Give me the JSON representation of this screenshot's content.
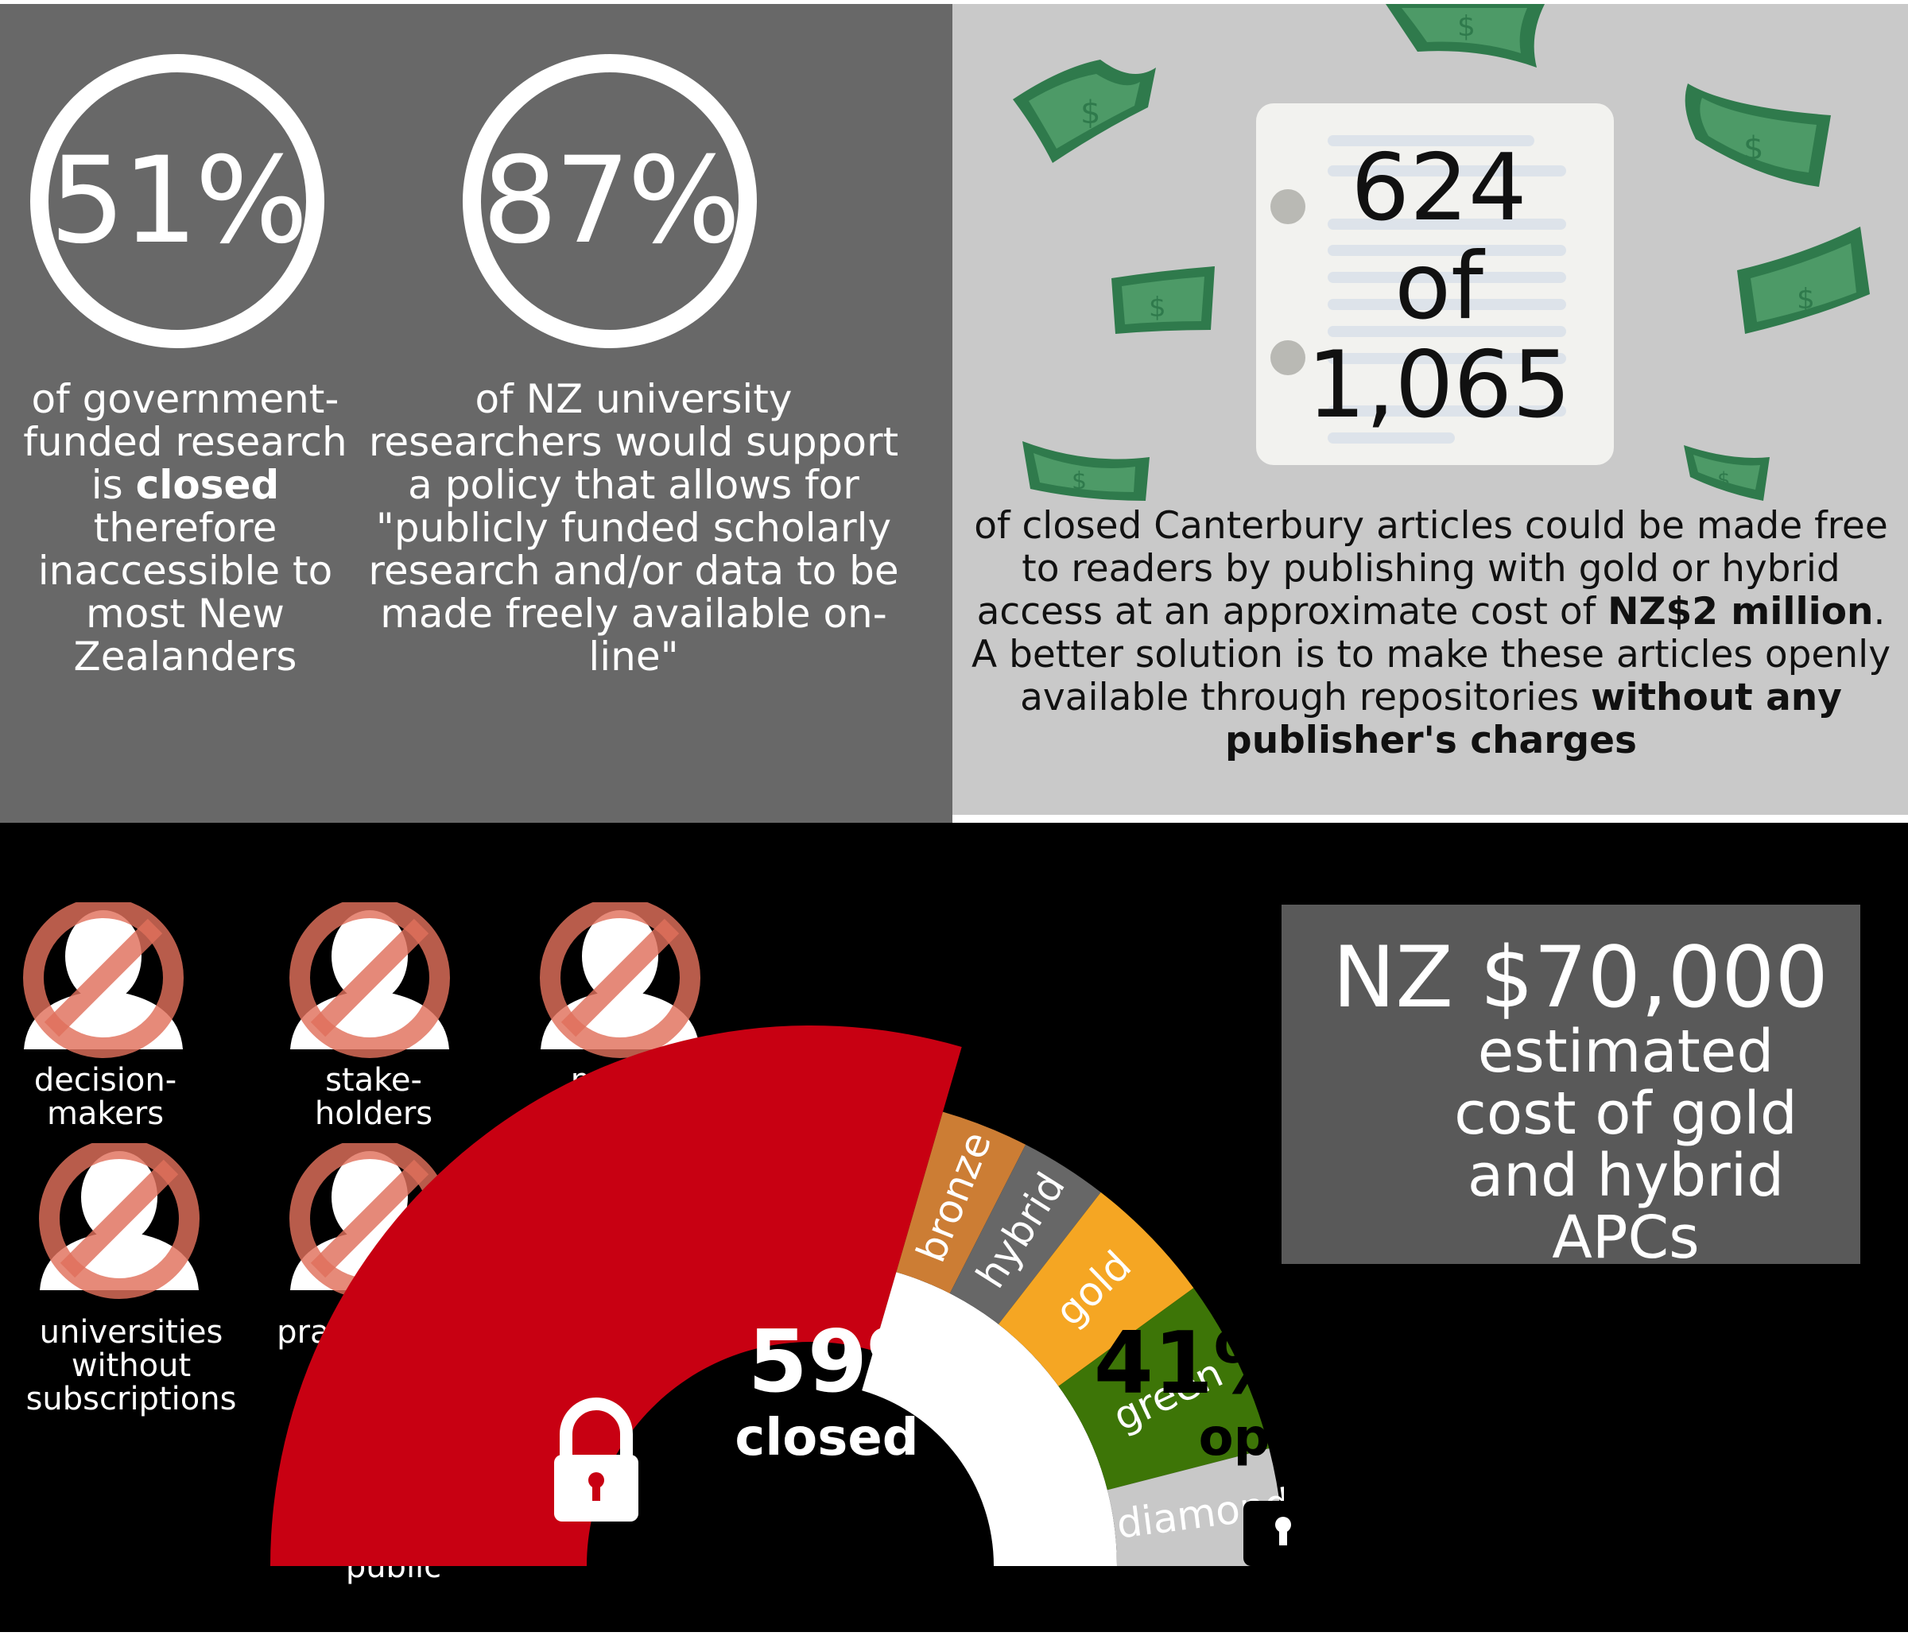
{
  "stat_left": {
    "value": "51%",
    "desc_before": "of government-funded research is ",
    "desc_bold": "closed",
    "desc_after": " therefore inaccessible to most New Zealanders"
  },
  "stat_middle": {
    "value": "87%",
    "desc": "of NZ university researchers would support a policy that allows for \"publicly funded scholarly research and/or data to be made freely available on-line\""
  },
  "canterbury": {
    "count_line1": "624",
    "count_line2": "of",
    "count_line3": "1,065",
    "text_1": "of closed Canterbury articles could be made free to readers by publishing with gold or hybrid access at an approximate cost of ",
    "text_bold_1": "NZ$2 million",
    "text_2": ".  A better solution is to make these articles openly available through repositories ",
    "text_bold_2": "without any publisher's charges"
  },
  "excluded_groups": [
    {
      "label_line1": "decision-",
      "label_line2": "makers"
    },
    {
      "label_line1": "stake-",
      "label_line2": "holders"
    },
    {
      "label_line1": "media",
      "label_line2": ""
    },
    {
      "label_line1": "universities",
      "label_line2": "without",
      "label_line3": "subscriptions"
    },
    {
      "label_line1": "practitioners",
      "label_line2": ""
    },
    {
      "label_line1": "public",
      "label_line2": ""
    }
  ],
  "apc": {
    "amount": "NZ $70,000",
    "caption_line1": "estimated",
    "caption_line2": "cost of gold",
    "caption_line3": "and hybrid",
    "caption_line4": "APCs"
  },
  "chart_data": {
    "type": "pie",
    "layout": "semicircle",
    "closed": {
      "percent": "59%",
      "label": "closed",
      "value": 59,
      "color": "#c80012"
    },
    "open": {
      "percent": "41%",
      "label": "open",
      "value": 41,
      "subcategories": [
        {
          "name": "bronze",
          "value": 6,
          "color": "#cc7d34"
        },
        {
          "name": "hybrid",
          "value": 6,
          "color": "#676767"
        },
        {
          "name": "gold",
          "value": 9,
          "color": "#f5a623"
        },
        {
          "name": "green",
          "value": 12,
          "color": "#3d7507"
        },
        {
          "name": "diamond",
          "value": 8,
          "color": "#c8c8c8"
        }
      ]
    }
  },
  "colors": {
    "panel_dark": "#686868",
    "panel_light": "#c9c9c9",
    "money": "#3f8a5a",
    "forbid": "#e0705c"
  }
}
